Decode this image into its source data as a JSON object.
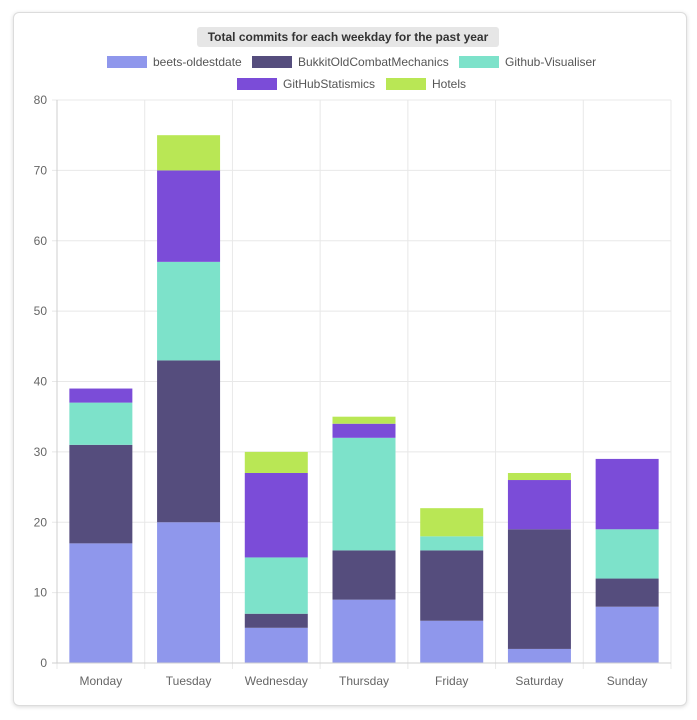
{
  "chart_data": {
    "type": "bar",
    "stacked": true,
    "title": "Total commits for each weekday for the past year",
    "categories": [
      "Monday",
      "Tuesday",
      "Wednesday",
      "Thursday",
      "Friday",
      "Saturday",
      "Sunday"
    ],
    "series": [
      {
        "name": "beets-oldestdate",
        "color": "#8f97ec",
        "values": [
          17,
          20,
          5,
          9,
          6,
          2,
          8
        ]
      },
      {
        "name": "BukkitOldCombatMechanics",
        "color": "#554d7d",
        "values": [
          14,
          23,
          2,
          7,
          10,
          17,
          4
        ]
      },
      {
        "name": "Github-Visualiser",
        "color": "#7de2ca",
        "values": [
          6,
          14,
          8,
          16,
          2,
          0,
          7
        ]
      },
      {
        "name": "GitHubStatismics",
        "color": "#7b4cd8",
        "values": [
          2,
          13,
          12,
          2,
          0,
          7,
          10
        ]
      },
      {
        "name": "Hotels",
        "color": "#b9e755",
        "values": [
          0,
          5,
          3,
          1,
          4,
          1,
          0
        ]
      }
    ],
    "ylim": [
      0,
      80
    ],
    "yticks": [
      "0",
      "10",
      "20",
      "30",
      "40",
      "50",
      "60",
      "70",
      "80"
    ],
    "yticks_values": [
      0,
      10,
      20,
      30,
      40,
      50,
      60,
      70,
      80
    ],
    "xlabel": "",
    "ylabel": "",
    "legend_position": "top",
    "grid": true
  }
}
